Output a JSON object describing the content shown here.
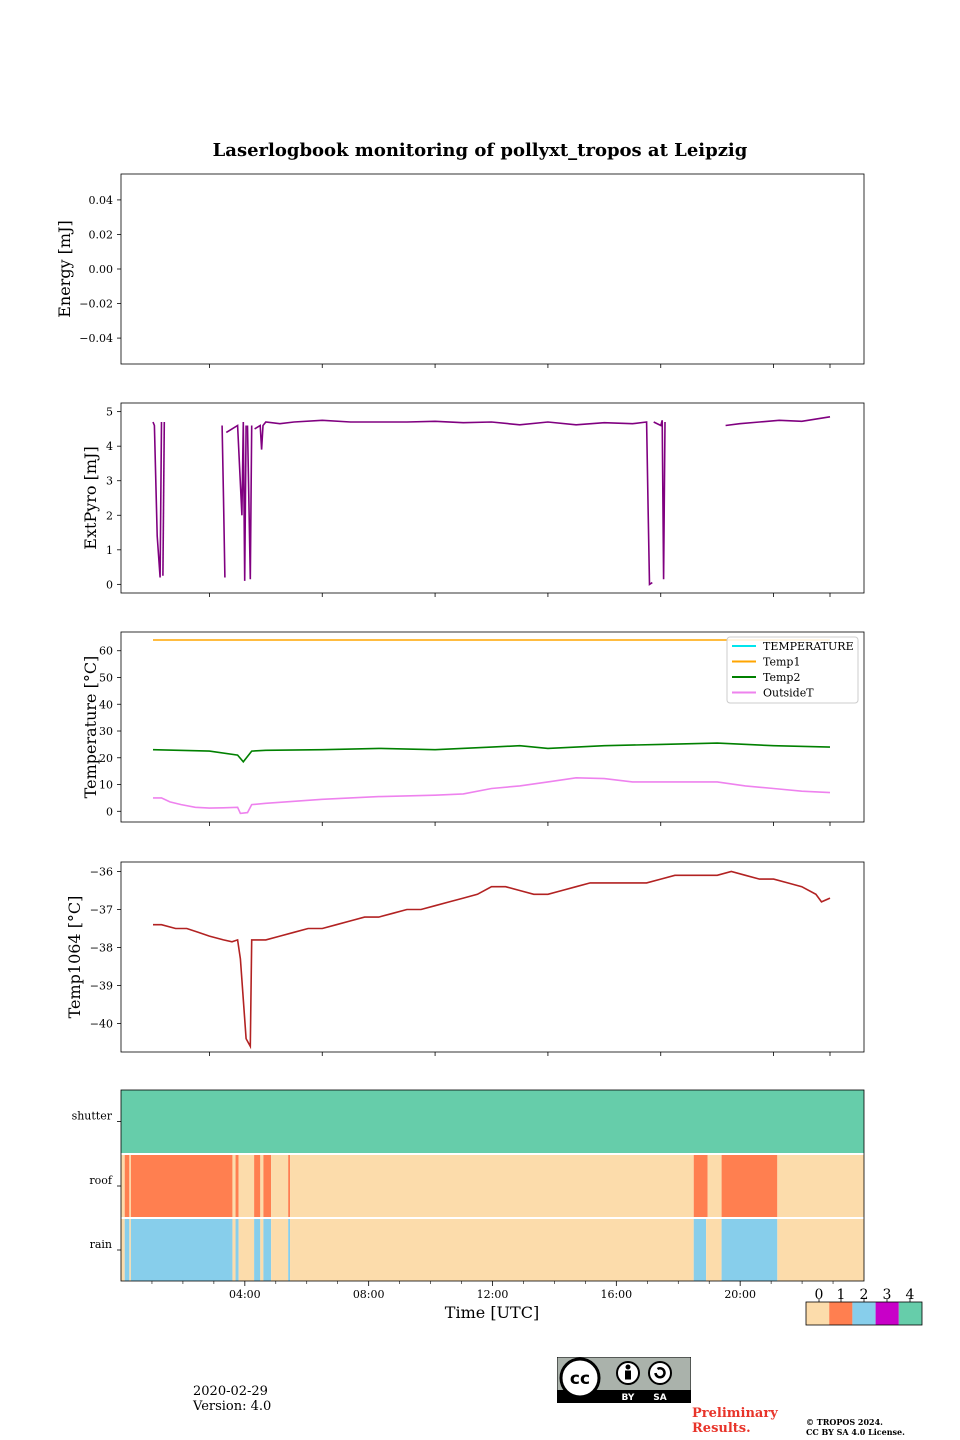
{
  "title": "Laserlogbook monitoring of pollyxt_tropos at Leipzig",
  "footer": {
    "date": "2020-02-29",
    "version": "Version: 4.0",
    "preliminary": "Preliminary",
    "results": "Results.",
    "copyright_line1": "© TROPOS 2024.",
    "copyright_line2": "CC BY SA 4.0 License.",
    "cc_badge": {
      "cc": "cc",
      "by": "BY",
      "sa": "SA"
    }
  },
  "colors": {
    "pyro": "#800080",
    "temperature": "#00e5ee",
    "temp1": "#ffa500",
    "temp2": "#008000",
    "outsideT": "#ee82ee",
    "temp1064": "#b22222",
    "status": [
      "#fcdcab",
      "#ff7f50",
      "#87ceeb",
      "#c800c8",
      "#66cdaa"
    ]
  },
  "chart_data": [
    {
      "type": "line",
      "name": "energy",
      "ylabel": "Energy [mJ]",
      "yticks": [
        "0.04",
        "0.02",
        "0.00",
        "−0.02",
        "−0.04"
      ],
      "ytick_values": [
        0.04,
        0.02,
        0.0,
        -0.02,
        -0.04
      ],
      "ylim": [
        -0.055,
        0.055
      ],
      "series": []
    },
    {
      "type": "line",
      "name": "extpyro",
      "ylabel": "ExtPyro [mJ]",
      "yticks": [
        "5",
        "4",
        "3",
        "2",
        "1",
        "0"
      ],
      "ytick_values": [
        5,
        4,
        3,
        2,
        1,
        0
      ],
      "ylim": [
        -0.25,
        5.25
      ],
      "series": [
        {
          "name": "ExtPyro",
          "x": [
            0.0,
            0.05,
            0.15,
            0.25,
            0.3
          ],
          "y": [
            4.7,
            4.6,
            1.4,
            0.2,
            4.7
          ]
        },
        {
          "name": "ExtPyro",
          "x": [
            0.35,
            0.4
          ],
          "y": [
            0.25,
            4.7
          ]
        },
        {
          "name": "ExtPyro",
          "x": [
            2.45,
            2.5,
            2.55
          ],
          "y": [
            4.6,
            2.5,
            0.2
          ]
        },
        {
          "name": "ExtPyro",
          "x": [
            2.6,
            2.8,
            3.0,
            3.15,
            3.2,
            3.25,
            3.3
          ],
          "y": [
            4.4,
            4.5,
            4.6,
            2.0,
            4.7,
            0.1,
            4.6
          ]
        },
        {
          "name": "ExtPyro",
          "x": [
            3.35,
            3.45,
            3.5
          ],
          "y": [
            4.6,
            0.15,
            4.6
          ]
        },
        {
          "name": "ExtPyro",
          "x": [
            3.6,
            3.8,
            3.85,
            3.9,
            4.0,
            4.5,
            5.0,
            6.0,
            7.0,
            8.0,
            9.0,
            10.0,
            11.0,
            12.0,
            13.0,
            14.0,
            15.0,
            16.0,
            17.0,
            17.5,
            17.55,
            17.6,
            17.7
          ],
          "y": [
            4.5,
            4.6,
            3.9,
            4.6,
            4.7,
            4.65,
            4.7,
            4.75,
            4.7,
            4.7,
            4.7,
            4.72,
            4.68,
            4.7,
            4.62,
            4.7,
            4.62,
            4.68,
            4.65,
            4.7,
            2.2,
            0.0,
            0.05
          ]
        },
        {
          "name": "ExtPyro",
          "x": [
            17.75,
            18.0,
            18.05,
            18.1,
            18.15
          ],
          "y": [
            4.7,
            4.6,
            4.75,
            0.15,
            4.7
          ]
        },
        {
          "name": "ExtPyro",
          "x": [
            20.3,
            20.8,
            21.5,
            22.2,
            23.0,
            24.0
          ],
          "y": [
            4.6,
            4.65,
            4.7,
            4.75,
            4.72,
            4.85
          ]
        }
      ]
    },
    {
      "type": "line",
      "name": "temperature",
      "ylabel": "Temperature [°C]",
      "yticks": [
        "60",
        "50",
        "40",
        "30",
        "20",
        "10",
        "0"
      ],
      "ytick_values": [
        60,
        50,
        40,
        30,
        20,
        10,
        0
      ],
      "ylim": [
        -4,
        67
      ],
      "legend": {
        "placement": "top-right",
        "entries": [
          "TEMPERATURE",
          "Temp1",
          "Temp2",
          "OutsideT"
        ]
      },
      "series": [
        {
          "name": "TEMPERATURE",
          "x": [],
          "y": []
        },
        {
          "name": "Temp1",
          "x": [
            0,
            24
          ],
          "y": [
            64,
            64
          ]
        },
        {
          "name": "Temp2",
          "x": [
            0,
            2,
            3.0,
            3.2,
            3.5,
            4,
            6,
            8,
            10,
            12,
            13,
            14,
            16,
            18,
            20,
            22,
            24
          ],
          "y": [
            23,
            22.5,
            21,
            18.5,
            22.5,
            22.8,
            23,
            23.5,
            23,
            24,
            24.5,
            23.5,
            24.5,
            25,
            25.5,
            24.5,
            24
          ]
        },
        {
          "name": "OutsideT",
          "x": [
            0,
            0.3,
            0.6,
            1.0,
            1.5,
            2.0,
            2.5,
            3.0,
            3.1,
            3.35,
            3.5,
            4,
            6,
            8,
            10,
            11,
            12,
            13,
            14,
            15,
            16,
            17,
            18,
            19,
            20,
            21,
            22,
            23,
            24
          ],
          "y": [
            5,
            5,
            3.5,
            2.5,
            1.5,
            1.2,
            1.3,
            1.5,
            -0.8,
            -0.5,
            2.5,
            3.0,
            4.5,
            5.5,
            6.0,
            6.5,
            8.5,
            9.5,
            11.0,
            12.5,
            12.2,
            11.0,
            11.0,
            11.0,
            11.0,
            9.5,
            8.5,
            7.5,
            7.0
          ]
        }
      ]
    },
    {
      "type": "line",
      "name": "temp1064",
      "ylabel": "Temp1064 [°C]",
      "yticks": [
        "−36",
        "−37",
        "−38",
        "−39",
        "−40"
      ],
      "ytick_values": [
        -36,
        -37,
        -38,
        -39,
        -40
      ],
      "ylim": [
        -40.75,
        -35.75
      ],
      "series": [
        {
          "name": "Temp1064",
          "x": [
            0,
            0.3,
            0.8,
            1.2,
            1.6,
            2.0,
            2.5,
            2.8,
            3.0,
            3.1,
            3.3,
            3.45,
            3.5,
            4.0,
            4.5,
            5.0,
            5.5,
            6.0,
            6.5,
            7.0,
            7.5,
            8.0,
            8.5,
            9.0,
            9.5,
            10.0,
            10.5,
            11.0,
            11.5,
            12.0,
            12.5,
            13.0,
            13.5,
            14.0,
            14.5,
            15.0,
            15.5,
            16.0,
            16.5,
            17.0,
            17.5,
            18.0,
            18.5,
            19.0,
            19.5,
            20.0,
            20.5,
            21.0,
            21.5,
            22.0,
            22.5,
            23.0,
            23.5,
            23.7,
            24.0
          ],
          "y": [
            -37.4,
            -37.4,
            -37.5,
            -37.5,
            -37.6,
            -37.7,
            -37.8,
            -37.85,
            -37.8,
            -38.3,
            -40.4,
            -40.6,
            -37.8,
            -37.8,
            -37.7,
            -37.6,
            -37.5,
            -37.5,
            -37.4,
            -37.3,
            -37.2,
            -37.2,
            -37.1,
            -37.0,
            -37.0,
            -36.9,
            -36.8,
            -36.7,
            -36.6,
            -36.4,
            -36.4,
            -36.5,
            -36.6,
            -36.6,
            -36.5,
            -36.4,
            -36.3,
            -36.3,
            -36.3,
            -36.3,
            -36.3,
            -36.2,
            -36.1,
            -36.1,
            -36.1,
            -36.1,
            -36.0,
            -36.1,
            -36.2,
            -36.2,
            -36.3,
            -36.4,
            -36.6,
            -36.8,
            -36.7
          ]
        }
      ]
    },
    {
      "type": "heatmap",
      "name": "status",
      "rows": [
        "shutter",
        "roof",
        "rain"
      ],
      "xlabel": "Time [UTC]",
      "xticks": [
        "04:00",
        "08:00",
        "12:00",
        "16:00",
        "20:00"
      ],
      "xtick_values": [
        4,
        8,
        12,
        16,
        20
      ],
      "xlim": [
        0,
        24
      ],
      "colorbar_ticks": [
        "0",
        "1",
        "2",
        "3",
        "4"
      ],
      "segments": {
        "shutter": [
          {
            "start": 0,
            "end": 24,
            "value": 4
          }
        ],
        "roof": [
          {
            "start": 0,
            "end": 0.12,
            "value": 0
          },
          {
            "start": 0.12,
            "end": 0.27,
            "value": 1
          },
          {
            "start": 0.27,
            "end": 0.32,
            "value": 0
          },
          {
            "start": 0.32,
            "end": 3.6,
            "value": 1
          },
          {
            "start": 3.6,
            "end": 3.7,
            "value": 0
          },
          {
            "start": 3.7,
            "end": 3.8,
            "value": 1
          },
          {
            "start": 3.8,
            "end": 4.3,
            "value": 0
          },
          {
            "start": 4.3,
            "end": 4.5,
            "value": 1
          },
          {
            "start": 4.5,
            "end": 4.6,
            "value": 0
          },
          {
            "start": 4.6,
            "end": 4.85,
            "value": 1
          },
          {
            "start": 4.85,
            "end": 5.4,
            "value": 0
          },
          {
            "start": 5.4,
            "end": 5.46,
            "value": 1
          },
          {
            "start": 5.46,
            "end": 18.5,
            "value": 0
          },
          {
            "start": 18.5,
            "end": 18.95,
            "value": 1
          },
          {
            "start": 18.95,
            "end": 19.4,
            "value": 0
          },
          {
            "start": 19.4,
            "end": 21.2,
            "value": 1
          },
          {
            "start": 21.2,
            "end": 24,
            "value": 0
          }
        ],
        "rain": [
          {
            "start": 0,
            "end": 0.12,
            "value": 0
          },
          {
            "start": 0.12,
            "end": 0.27,
            "value": 2
          },
          {
            "start": 0.27,
            "end": 0.32,
            "value": 0
          },
          {
            "start": 0.32,
            "end": 3.6,
            "value": 2
          },
          {
            "start": 3.6,
            "end": 3.7,
            "value": 0
          },
          {
            "start": 3.7,
            "end": 3.8,
            "value": 2
          },
          {
            "start": 3.8,
            "end": 4.3,
            "value": 0
          },
          {
            "start": 4.3,
            "end": 4.5,
            "value": 2
          },
          {
            "start": 4.5,
            "end": 4.6,
            "value": 0
          },
          {
            "start": 4.6,
            "end": 4.85,
            "value": 2
          },
          {
            "start": 4.85,
            "end": 5.4,
            "value": 0
          },
          {
            "start": 5.4,
            "end": 5.46,
            "value": 2
          },
          {
            "start": 5.46,
            "end": 18.5,
            "value": 0
          },
          {
            "start": 18.5,
            "end": 18.9,
            "value": 2
          },
          {
            "start": 18.9,
            "end": 19.4,
            "value": 0
          },
          {
            "start": 19.4,
            "end": 21.2,
            "value": 2
          },
          {
            "start": 21.2,
            "end": 24,
            "value": 0
          }
        ]
      }
    }
  ]
}
